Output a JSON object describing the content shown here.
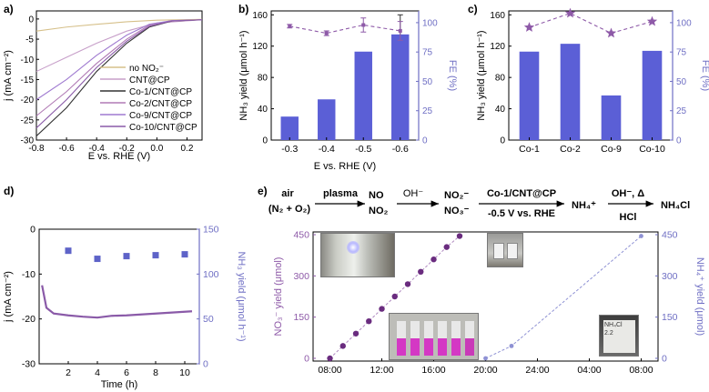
{
  "colors": {
    "bar": "#5b5fd6",
    "fe": "#8e5aa8",
    "axis_right": "#6f6fc4",
    "no_no2": "#d6c08a",
    "cnt": "#c79fc9",
    "co1": "#333333",
    "co2": "#b07ab5",
    "co9": "#9f7ad0",
    "co10": "#8a5aa8",
    "scatter_sq": "#5e63c8",
    "no3_pts": "#6a2c7f",
    "no3_line": "#b08ac0",
    "nh4_line": "#8f92d4"
  },
  "chart_data": [
    {
      "panel": "a)",
      "type": "line",
      "xlabel": "E vs. RHE (V)",
      "ylabel": "j (mA cm⁻²)",
      "xlim": [
        -0.8,
        0.3
      ],
      "ylim": [
        -30,
        2
      ],
      "xticks": [
        "-0.8",
        "-0.6",
        "-0.4",
        "-0.2",
        "0.0",
        "0.2"
      ],
      "yticks": [
        "0",
        "-5",
        "-10",
        "-15",
        "-20",
        "-25",
        "-30"
      ],
      "legend": [
        "no NO₂⁻",
        "CNT@CP",
        "Co-1/CNT@CP",
        "Co-2/CNT@CP",
        "Co-9/CNT@CP",
        "Co-10/CNT@CP"
      ],
      "series": [
        {
          "name": "no NO₂⁻",
          "x": [
            -0.8,
            -0.6,
            -0.4,
            -0.2,
            0.0,
            0.3
          ],
          "y": [
            -3.0,
            -2.0,
            -1.3,
            -0.7,
            -0.3,
            -0.1
          ]
        },
        {
          "name": "CNT@CP",
          "x": [
            -0.8,
            -0.6,
            -0.4,
            -0.2,
            0.0,
            0.3
          ],
          "y": [
            -13.0,
            -9.5,
            -6.0,
            -3.0,
            -1.0,
            -0.2
          ]
        },
        {
          "name": "Co-1/CNT@CP",
          "x": [
            -0.8,
            -0.6,
            -0.4,
            -0.2,
            -0.05,
            0.1,
            0.3
          ],
          "y": [
            -29.0,
            -22.0,
            -13.0,
            -6.0,
            -2.0,
            -0.5,
            -0.2
          ]
        },
        {
          "name": "Co-2/CNT@CP",
          "x": [
            -0.8,
            -0.6,
            -0.4,
            -0.2,
            -0.05,
            0.1,
            0.3
          ],
          "y": [
            -24.0,
            -18.0,
            -11.0,
            -5.0,
            -1.5,
            -0.4,
            -0.2
          ]
        },
        {
          "name": "Co-9/CNT@CP",
          "x": [
            -0.8,
            -0.6,
            -0.4,
            -0.2,
            -0.05,
            0.1,
            0.3
          ],
          "y": [
            -20.0,
            -15.0,
            -9.0,
            -4.0,
            -1.3,
            -0.4,
            -0.2
          ]
        },
        {
          "name": "Co-10/CNT@CP",
          "x": [
            -0.8,
            -0.6,
            -0.4,
            -0.2,
            -0.05,
            0.1,
            0.3
          ],
          "y": [
            -27.0,
            -20.0,
            -12.0,
            -5.5,
            -1.8,
            -0.5,
            -0.2
          ]
        }
      ]
    },
    {
      "panel": "b)",
      "type": "bar",
      "categories": [
        "-0.3",
        "-0.4",
        "-0.5",
        "-0.6"
      ],
      "values": [
        30,
        52,
        113,
        135
      ],
      "errors": [
        0,
        0,
        0,
        25
      ],
      "fe": [
        97,
        91,
        98,
        93
      ],
      "fe_errors": [
        1.5,
        2,
        6,
        8
      ],
      "xlabel": "E vs. RHE (V)",
      "ylabel": "NH₃ yield (μmol h⁻¹)",
      "y2label": "FE (%)",
      "ylim": [
        0,
        165
      ],
      "y2lim": [
        0,
        110
      ],
      "yticks": [
        "0",
        "40",
        "80",
        "120",
        "160"
      ],
      "y2ticks": [
        "0",
        "25",
        "50",
        "75",
        "100"
      ]
    },
    {
      "panel": "c)",
      "type": "bar",
      "categories": [
        "Co-1",
        "Co-2",
        "Co-9",
        "Co-10"
      ],
      "values": [
        113,
        123,
        57,
        114
      ],
      "fe": [
        96,
        108,
        91,
        101
      ],
      "ylabel": "NH₃ yield (μmol h⁻¹)",
      "y2label": "FE (%)",
      "ylim": [
        0,
        165
      ],
      "y2lim": [
        0,
        110
      ],
      "yticks": [
        "0",
        "40",
        "80",
        "120",
        "160"
      ],
      "y2ticks": [
        "0",
        "25",
        "50",
        "75",
        "100"
      ]
    },
    {
      "panel": "d)",
      "type": "line",
      "xlabel": "Time (h)",
      "ylabel": "j (mA cm⁻²)",
      "y2label": "NH₃ yield (μmol h⁻¹)",
      "xlim": [
        0,
        11
      ],
      "ylim": [
        -30,
        0
      ],
      "y2lim": [
        0,
        150
      ],
      "xticks": [
        "2",
        "4",
        "6",
        "8",
        "10"
      ],
      "yticks": [
        "0",
        "-10",
        "-20",
        "-30"
      ],
      "y2ticks": [
        "0",
        "50",
        "100",
        "150"
      ],
      "current": {
        "x": [
          0.2,
          0.5,
          1,
          2,
          3,
          4,
          5,
          6,
          7,
          8,
          9,
          10.5
        ],
        "y": [
          -12.5,
          -17.5,
          -18.8,
          -19.2,
          -19.5,
          -19.7,
          -19.3,
          -19.2,
          -19.0,
          -18.8,
          -18.6,
          -18.3
        ]
      },
      "yield": {
        "x": [
          2,
          4,
          6,
          8,
          10
        ],
        "y": [
          126,
          117,
          120,
          121,
          122
        ]
      }
    },
    {
      "panel": "e)",
      "type": "scatter",
      "ylabel": "NO₃⁻ yield (μmol)",
      "y2label": "NH₄⁺ yield (μmol)",
      "xticks": [
        "08:00",
        "12:00",
        "16:00",
        "20:00",
        "24:00",
        "04:00",
        "08:00"
      ],
      "xhours": [
        0,
        4,
        8,
        12,
        16,
        20,
        24
      ],
      "ylim": [
        -10,
        460
      ],
      "yticks": [
        "0",
        "150",
        "300",
        "450"
      ],
      "no3": {
        "x": [
          0,
          1,
          2,
          3,
          4,
          5,
          6,
          7,
          8,
          9,
          10
        ],
        "y": [
          0,
          45,
          90,
          135,
          180,
          225,
          270,
          315,
          360,
          405,
          445
        ]
      },
      "nh4": {
        "x": [
          12,
          14,
          24
        ],
        "y": [
          0,
          45,
          445
        ]
      }
    }
  ],
  "scheme": {
    "air": "air",
    "air_mix": "(N₂ + O₂)",
    "plasma": "plasma",
    "no": "NO",
    "no2": "NO₂",
    "oh": "OH⁻",
    "no2m": "NO₂⁻",
    "no3m": "NO₃⁻",
    "catalyst": "Co-1/CNT@CP",
    "potential": "-0.5 V vs. RHE",
    "nh4": "NH₄⁺",
    "oh_heat": "OH⁻, Δ",
    "hcl": "HCl",
    "nh4cl": "NH₄Cl"
  },
  "photo_labels": {
    "tube_label": "NH₄Cl",
    "tube_note": "2.2"
  }
}
